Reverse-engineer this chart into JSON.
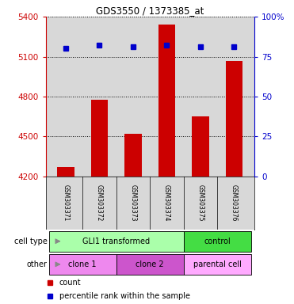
{
  "title": "GDS3550 / 1373385_at",
  "samples": [
    "GSM303371",
    "GSM303372",
    "GSM303373",
    "GSM303374",
    "GSM303375",
    "GSM303376"
  ],
  "counts": [
    4270,
    4775,
    4520,
    5340,
    4650,
    5070
  ],
  "percentile_ranks": [
    80,
    82,
    81,
    82,
    81,
    81
  ],
  "ylim_left": [
    4200,
    5400
  ],
  "ylim_right": [
    0,
    100
  ],
  "yticks_left": [
    4200,
    4500,
    4800,
    5100,
    5400
  ],
  "yticks_right": [
    0,
    25,
    50,
    75,
    100
  ],
  "bar_color": "#cc0000",
  "dot_color": "#0000cc",
  "bar_width": 0.5,
  "cell_type_groups": [
    {
      "label": "GLI1 transformed",
      "start": 0,
      "end": 3,
      "color": "#aaffaa"
    },
    {
      "label": "control",
      "start": 4,
      "end": 5,
      "color": "#44dd44"
    }
  ],
  "other_groups": [
    {
      "label": "clone 1",
      "start": 0,
      "end": 1,
      "color": "#ee88ee"
    },
    {
      "label": "clone 2",
      "start": 2,
      "end": 3,
      "color": "#cc55cc"
    },
    {
      "label": "parental cell",
      "start": 4,
      "end": 5,
      "color": "#ffaaff"
    }
  ],
  "legend_count_label": "count",
  "legend_percentile_label": "percentile rank within the sample",
  "cell_type_label": "cell type",
  "other_label": "other",
  "plot_bg_color": "#d8d8d8",
  "left_axis_color": "#cc0000",
  "right_axis_color": "#0000cc"
}
